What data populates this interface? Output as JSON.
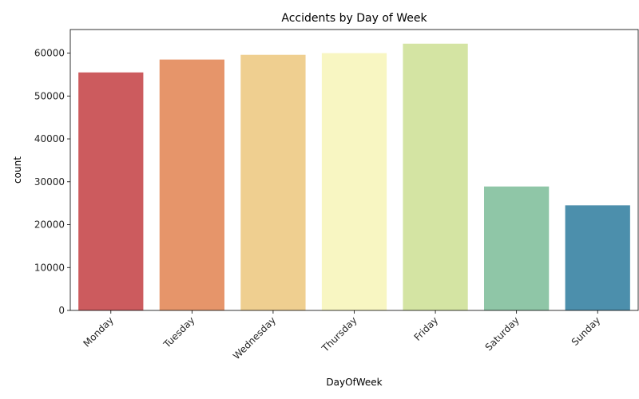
{
  "chart_data": {
    "type": "bar",
    "title": "Accidents by Day of Week",
    "xlabel": "DayOfWeek",
    "ylabel": "count",
    "categories": [
      "Monday",
      "Tuesday",
      "Wednesday",
      "Thursday",
      "Friday",
      "Saturday",
      "Sunday"
    ],
    "values": [
      55500,
      58500,
      59600,
      60000,
      62200,
      28900,
      24500
    ],
    "colors": [
      "#cc5b5e",
      "#e6956a",
      "#efcf90",
      "#f8f6c2",
      "#d4e4a3",
      "#8fc6a7",
      "#4c8fac"
    ],
    "ylim": [
      0,
      65500
    ],
    "yticks": [
      0,
      10000,
      20000,
      30000,
      40000,
      50000,
      60000
    ],
    "grid": false,
    "legend": "none"
  }
}
